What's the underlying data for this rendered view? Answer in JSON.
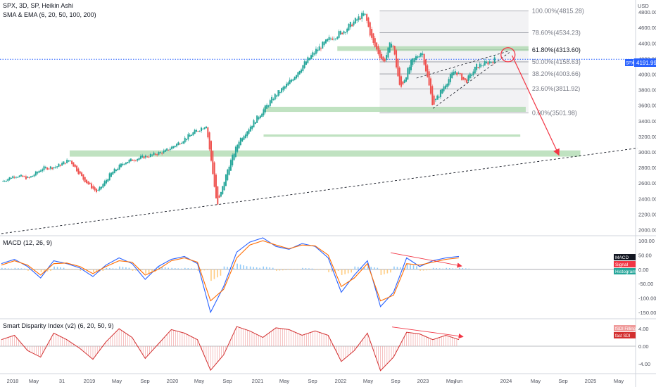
{
  "header": {
    "title": "SPX, 3D, SP, Heikin Ashi",
    "indicator": "SMA & EMA (6, 20, 50, 100, 200)",
    "currency": "USD"
  },
  "price_badge": {
    "symbol": "SPX",
    "value": "4191.99"
  },
  "colors": {
    "up": "#26a69a",
    "down": "#ef5350",
    "zone": "#a5d6a7",
    "macd": "#2962ff",
    "signal": "#ff6d00",
    "hist_up": "#90caf9",
    "hist_down": "#ffcc80",
    "arrow": "#f23645",
    "blue_dot": "#2962ff"
  },
  "chart_data": [
    {
      "type": "candlestick",
      "name_text": "SPX, 3D, SP, Heikin Ashi",
      "y_axis_ticks": [
        2000,
        2200,
        2400,
        2600,
        2800,
        3000,
        3200,
        3400,
        3600,
        3800,
        4000,
        4200,
        4400,
        4600,
        4800
      ],
      "ylim": [
        1950,
        4900
      ],
      "x_axis_labels": [
        "2018",
        "May",
        "31",
        "2019",
        "May",
        "Sep",
        "2020",
        "May",
        "Sep",
        "2021",
        "May",
        "Sep",
        "2022",
        "May",
        "Sep",
        "2023",
        "May",
        "Jun",
        "2024",
        "May",
        "Sep",
        "2025",
        "May"
      ],
      "price_path": [
        [
          0,
          2620
        ],
        [
          0.5,
          2700
        ],
        [
          1,
          2660
        ],
        [
          1.5,
          2790
        ],
        [
          2,
          2810
        ],
        [
          2.5,
          2900
        ],
        [
          3,
          2650
        ],
        [
          3.5,
          2480
        ],
        [
          4,
          2720
        ],
        [
          4.5,
          2870
        ],
        [
          5,
          2920
        ],
        [
          5.5,
          2960
        ],
        [
          6,
          3010
        ],
        [
          6.5,
          3120
        ],
        [
          7,
          3240
        ],
        [
          7.5,
          3350
        ],
        [
          7.9,
          2300
        ],
        [
          8.3,
          2800
        ],
        [
          8.7,
          3150
        ],
        [
          9,
          3280
        ],
        [
          9.5,
          3500
        ],
        [
          10,
          3720
        ],
        [
          10.5,
          3880
        ],
        [
          11,
          4100
        ],
        [
          11.5,
          4300
        ],
        [
          12,
          4450
        ],
        [
          12.5,
          4550
        ],
        [
          13,
          4700
        ],
        [
          13.3,
          4780
        ],
        [
          13.6,
          4400
        ],
        [
          14,
          4150
        ],
        [
          14.3,
          4450
        ],
        [
          14.6,
          3800
        ],
        [
          15,
          4150
        ],
        [
          15.4,
          4300
        ],
        [
          15.8,
          3600
        ],
        [
          16.2,
          3850
        ],
        [
          16.6,
          4050
        ],
        [
          17,
          3900
        ],
        [
          17.4,
          4100
        ],
        [
          17.8,
          4150
        ],
        [
          18.1,
          4192
        ]
      ],
      "zones": [
        {
          "from": 3515,
          "to": 3580,
          "x0": 9.6,
          "x1": 19.2
        },
        {
          "from": 3195,
          "to": 3225,
          "x0": 9.6,
          "x1": 19.0
        },
        {
          "from": 2940,
          "to": 3020,
          "x0": 2.5,
          "x1": 21.2
        },
        {
          "from": 4300,
          "to": 4360,
          "x0": 12.3,
          "x1": 19.3
        }
      ],
      "fib_levels": [
        {
          "label": "100.00%(4815.28)",
          "value": 4815.28
        },
        {
          "label": "78.60%(4534.23)",
          "value": 4534.23
        },
        {
          "label": "61.80%(4313.60)",
          "value": 4313.6
        },
        {
          "label": "50.00%(4158.63)",
          "value": 4158.63
        },
        {
          "label": "38.20%(4003.66)",
          "value": 4003.66
        },
        {
          "label": "23.60%(3811.92)",
          "value": 3811.92
        },
        {
          "label": "0.00%(3501.98)",
          "value": 3501.98
        }
      ],
      "fib_range_x": [
        13.85,
        19.3
      ],
      "trendline": {
        "from": [
          0,
          1950
        ],
        "to": [
          23.3,
          3050
        ]
      },
      "projection_arrow": {
        "from": [
          18.7,
          4240
        ],
        "to": [
          20.4,
          2970
        ]
      }
    },
    {
      "type": "line",
      "title": "MACD (12, 26, 9)",
      "y_axis_ticks": [
        "100.00",
        "50.00",
        "0.00",
        "-50.00",
        "-100.00",
        "-150.00"
      ],
      "ylim": [
        -165,
        110
      ],
      "series": [
        {
          "name": "MACD",
          "values": [
            20,
            35,
            10,
            -30,
            30,
            20,
            5,
            -25,
            15,
            40,
            20,
            -35,
            10,
            35,
            45,
            20,
            -150,
            -60,
            60,
            95,
            110,
            80,
            70,
            90,
            80,
            40,
            -80,
            -20,
            30,
            -130,
            -80,
            40,
            10,
            30,
            40,
            45
          ]
        },
        {
          "name": "Signal",
          "values": [
            15,
            30,
            15,
            -20,
            20,
            22,
            10,
            -15,
            10,
            30,
            25,
            -20,
            0,
            30,
            40,
            25,
            -110,
            -70,
            40,
            85,
            100,
            85,
            72,
            85,
            82,
            50,
            -60,
            -30,
            20,
            -110,
            -90,
            20,
            15,
            25,
            35,
            40
          ]
        }
      ],
      "histogram": [
        5,
        5,
        -5,
        -10,
        10,
        -2,
        -5,
        -10,
        5,
        10,
        -5,
        -15,
        10,
        5,
        5,
        -5,
        -40,
        10,
        20,
        10,
        10,
        -5,
        -2,
        5,
        -2,
        -10,
        -20,
        10,
        10,
        -20,
        10,
        20,
        -5,
        5,
        5,
        5
      ],
      "legend_tags": [
        "MACD",
        "Signal",
        "Histogram"
      ]
    },
    {
      "type": "area",
      "title": "Smart Disparity Index (v2) (6, 20, 50, 9)",
      "y_axis_ticks": [
        "4.00",
        "0.00",
        "-4.00"
      ],
      "ylim": [
        -5.8,
        5.8
      ],
      "values": [
        1.5,
        2.5,
        -1,
        -2.5,
        3,
        1.5,
        -0.5,
        -3,
        1,
        4,
        2,
        -2.8,
        0.5,
        3.8,
        3,
        1.5,
        -5.5,
        -2,
        4.5,
        3.5,
        2,
        4.2,
        3.8,
        2.5,
        3.5,
        2.5,
        -3.5,
        -1,
        3,
        -5.6,
        -2.5,
        3.2,
        2.8,
        1.5,
        2.5,
        1.5
      ],
      "legend_tags": [
        "fSDI Filling",
        "fast SDI"
      ]
    }
  ]
}
